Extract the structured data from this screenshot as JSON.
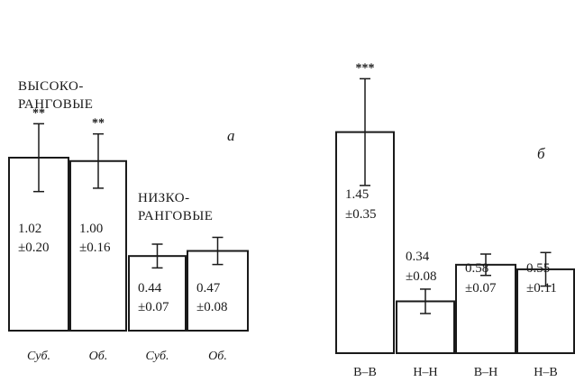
{
  "chart_data": [
    {
      "type": "bar",
      "panel_label": "а",
      "categories": [
        "Суб.",
        "Об.",
        "Суб.",
        "Об."
      ],
      "values": [
        1.02,
        1.0,
        0.44,
        0.47
      ],
      "errors": [
        0.2,
        0.16,
        0.07,
        0.08
      ],
      "value_lines": [
        [
          "1.02",
          "±0.20"
        ],
        [
          "1.00",
          "±0.16"
        ],
        [
          "0.44",
          "±0.07"
        ],
        [
          "0.47",
          "±0.08"
        ]
      ],
      "significance": [
        "**",
        "**",
        "",
        ""
      ],
      "groups": [
        {
          "lines": [
            "ВЫСОКО-",
            "РАНГОВЫЕ"
          ],
          "bars": [
            0,
            1
          ]
        },
        {
          "lines": [
            "НИЗКО-",
            "РАНГОВЫЕ"
          ],
          "bars": [
            2,
            3
          ]
        }
      ],
      "ylim": [
        0,
        1.7
      ],
      "tick_style": "italic"
    },
    {
      "type": "bar",
      "panel_label": "б",
      "categories": [
        "В–В",
        "Н–Н",
        "В–Н",
        "Н–В"
      ],
      "values": [
        1.45,
        0.34,
        0.58,
        0.55
      ],
      "errors": [
        0.35,
        0.08,
        0.07,
        0.11
      ],
      "value_lines": [
        [
          "1.45",
          "±0.35"
        ],
        [
          "0.34",
          "±0.08"
        ],
        [
          "0.58",
          "±0.07"
        ],
        [
          "0.55",
          "±0.11"
        ]
      ],
      "significance": [
        "***",
        "",
        "",
        ""
      ],
      "ylim": [
        0,
        1.95
      ],
      "tick_style": "normal"
    }
  ]
}
